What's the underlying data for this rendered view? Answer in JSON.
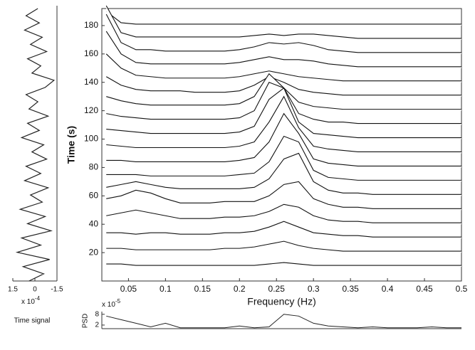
{
  "chart_data": [
    {
      "type": "line",
      "xlabel": "Time signal",
      "x_multiplier": "x 10",
      "x_exponent": "-4",
      "xlim": [
        1.5,
        -1.5
      ],
      "xticks": [
        1.5,
        0,
        -1.5
      ],
      "ylim": [
        0,
        192
      ],
      "x": [
        0,
        5,
        10,
        15,
        20,
        25,
        30,
        35,
        40,
        45,
        50,
        55,
        60,
        65,
        70,
        75,
        80,
        85,
        90,
        95,
        100,
        105,
        110,
        115,
        120,
        125,
        130,
        135,
        140,
        145,
        150,
        155,
        160,
        165,
        170,
        175,
        180,
        185,
        190
      ],
      "values": [
        0.4,
        -0.6,
        0.8,
        -1.0,
        1.2,
        -0.4,
        0.9,
        -1.1,
        0.5,
        -0.7,
        1.0,
        -0.5,
        0.3,
        -0.9,
        0.7,
        -0.4,
        0.6,
        -0.8,
        0.2,
        -0.6,
        0.9,
        -0.3,
        0.5,
        -0.9,
        0.4,
        -0.2,
        0.6,
        -0.7,
        -1.3,
        0.2,
        -0.4,
        0.5,
        -0.8,
        0.3,
        -0.5,
        0.7,
        -0.3,
        0.6,
        -0.2
      ],
      "color": "#222"
    },
    {
      "type": "waterfall",
      "xlabel": "Frequency (Hz)",
      "ylabel": "Time (s)",
      "xlim": [
        0.014,
        0.5
      ],
      "xticks": [
        0.05,
        0.1,
        0.15,
        0.2,
        0.25,
        0.3,
        0.35,
        0.4,
        0.45,
        0.5
      ],
      "ylim": [
        0,
        192
      ],
      "yticks": [
        20,
        40,
        60,
        80,
        100,
        120,
        140,
        160,
        180
      ],
      "x": [
        0.02,
        0.04,
        0.06,
        0.08,
        0.1,
        0.12,
        0.14,
        0.16,
        0.18,
        0.2,
        0.22,
        0.24,
        0.26,
        0.28,
        0.3,
        0.32,
        0.34,
        0.36,
        0.38,
        0.4,
        0.42,
        0.44,
        0.46,
        0.48,
        0.5
      ],
      "color": "#111",
      "series": [
        {
          "time": 10,
          "values": [
            2,
            2,
            1,
            1,
            1,
            1,
            1,
            1,
            1,
            1,
            1,
            2,
            3,
            2,
            1,
            1,
            1,
            1,
            1,
            1,
            1,
            1,
            1,
            1,
            1
          ]
        },
        {
          "time": 20,
          "values": [
            3,
            3,
            2,
            2,
            2,
            2,
            2,
            2,
            3,
            3,
            4,
            6,
            8,
            5,
            3,
            2,
            1,
            1,
            1,
            1,
            1,
            1,
            1,
            1,
            1
          ]
        },
        {
          "time": 30,
          "values": [
            4,
            4,
            3,
            4,
            4,
            3,
            3,
            3,
            4,
            4,
            5,
            8,
            12,
            8,
            4,
            3,
            2,
            2,
            1,
            1,
            1,
            1,
            1,
            1,
            1
          ]
        },
        {
          "time": 40,
          "values": [
            6,
            8,
            10,
            8,
            6,
            4,
            4,
            4,
            5,
            5,
            6,
            9,
            14,
            12,
            6,
            3,
            2,
            2,
            1,
            1,
            1,
            1,
            1,
            1,
            1
          ]
        },
        {
          "time": 50,
          "values": [
            8,
            10,
            14,
            12,
            8,
            5,
            5,
            5,
            6,
            6,
            6,
            10,
            18,
            20,
            8,
            4,
            2,
            2,
            1,
            1,
            1,
            1,
            1,
            1,
            1
          ]
        },
        {
          "time": 60,
          "values": [
            6,
            8,
            10,
            8,
            6,
            5,
            5,
            5,
            5,
            5,
            6,
            12,
            26,
            30,
            10,
            4,
            2,
            2,
            1,
            1,
            1,
            1,
            1,
            1,
            1
          ]
        },
        {
          "time": 70,
          "values": [
            5,
            5,
            5,
            4,
            4,
            4,
            4,
            4,
            4,
            5,
            6,
            14,
            32,
            28,
            8,
            3,
            2,
            1,
            1,
            1,
            1,
            1,
            1,
            1,
            1
          ]
        },
        {
          "time": 80,
          "values": [
            5,
            5,
            4,
            4,
            4,
            4,
            4,
            4,
            4,
            5,
            7,
            18,
            38,
            24,
            6,
            3,
            2,
            1,
            1,
            1,
            1,
            1,
            1,
            1,
            1
          ]
        },
        {
          "time": 90,
          "values": [
            6,
            5,
            4,
            4,
            4,
            4,
            4,
            4,
            4,
            5,
            8,
            22,
            40,
            18,
            5,
            3,
            2,
            1,
            1,
            1,
            1,
            1,
            1,
            1,
            1
          ]
        },
        {
          "time": 100,
          "values": [
            7,
            6,
            5,
            4,
            4,
            4,
            4,
            4,
            4,
            5,
            9,
            28,
            36,
            12,
            4,
            3,
            2,
            1,
            1,
            1,
            1,
            1,
            1,
            1,
            1
          ]
        },
        {
          "time": 110,
          "values": [
            8,
            6,
            5,
            4,
            4,
            4,
            4,
            4,
            4,
            5,
            10,
            30,
            26,
            8,
            4,
            2,
            2,
            1,
            1,
            1,
            1,
            1,
            1,
            1,
            1
          ]
        },
        {
          "time": 120,
          "values": [
            10,
            7,
            5,
            4,
            4,
            4,
            4,
            4,
            4,
            5,
            10,
            26,
            16,
            6,
            3,
            2,
            1,
            1,
            1,
            1,
            1,
            1,
            1,
            1,
            1
          ]
        },
        {
          "time": 130,
          "values": [
            14,
            8,
            5,
            4,
            4,
            4,
            3,
            3,
            3,
            4,
            8,
            14,
            10,
            5,
            3,
            2,
            1,
            1,
            1,
            1,
            1,
            1,
            1,
            1,
            1
          ]
        },
        {
          "time": 140,
          "values": [
            20,
            10,
            5,
            4,
            3,
            3,
            3,
            3,
            3,
            4,
            6,
            8,
            6,
            4,
            3,
            2,
            1,
            1,
            1,
            1,
            1,
            1,
            1,
            1,
            1
          ]
        },
        {
          "time": 150,
          "values": [
            26,
            10,
            4,
            3,
            3,
            3,
            3,
            3,
            3,
            4,
            6,
            8,
            6,
            6,
            5,
            3,
            2,
            1,
            1,
            1,
            1,
            1,
            1,
            1,
            1
          ]
        },
        {
          "time": 160,
          "values": [
            28,
            8,
            3,
            3,
            2,
            2,
            2,
            2,
            2,
            3,
            5,
            8,
            7,
            8,
            6,
            3,
            2,
            1,
            1,
            1,
            1,
            1,
            1,
            1,
            1
          ]
        },
        {
          "time": 170,
          "values": [
            24,
            5,
            2,
            2,
            2,
            2,
            2,
            2,
            2,
            2,
            3,
            4,
            3,
            4,
            4,
            3,
            2,
            1,
            1,
            1,
            1,
            1,
            1,
            1,
            1
          ]
        },
        {
          "time": 180,
          "values": [
            10,
            2,
            1,
            1,
            1,
            1,
            1,
            1,
            1,
            1,
            1,
            1,
            1,
            1,
            1,
            1,
            1,
            1,
            1,
            1,
            1,
            1,
            1,
            1,
            1
          ]
        }
      ]
    },
    {
      "type": "line",
      "ylabel": "PSD",
      "y_multiplier": "x 10",
      "y_exponent": "-5",
      "xlim": [
        0.014,
        0.5
      ],
      "ylim": [
        0,
        9.5
      ],
      "yticks": [
        2,
        8
      ],
      "x": [
        0.02,
        0.04,
        0.06,
        0.08,
        0.1,
        0.12,
        0.14,
        0.16,
        0.18,
        0.2,
        0.22,
        0.24,
        0.26,
        0.28,
        0.3,
        0.32,
        0.34,
        0.36,
        0.38,
        0.4,
        0.42,
        0.44,
        0.46,
        0.48,
        0.5
      ],
      "values": [
        7,
        5,
        3,
        1,
        3,
        0.5,
        0.5,
        0.5,
        0.5,
        1.5,
        0.5,
        1,
        8,
        7,
        3,
        1.5,
        1,
        0.5,
        1,
        0.5,
        0.5,
        0.5,
        1,
        0.5,
        0.5
      ],
      "color": "#222"
    }
  ]
}
